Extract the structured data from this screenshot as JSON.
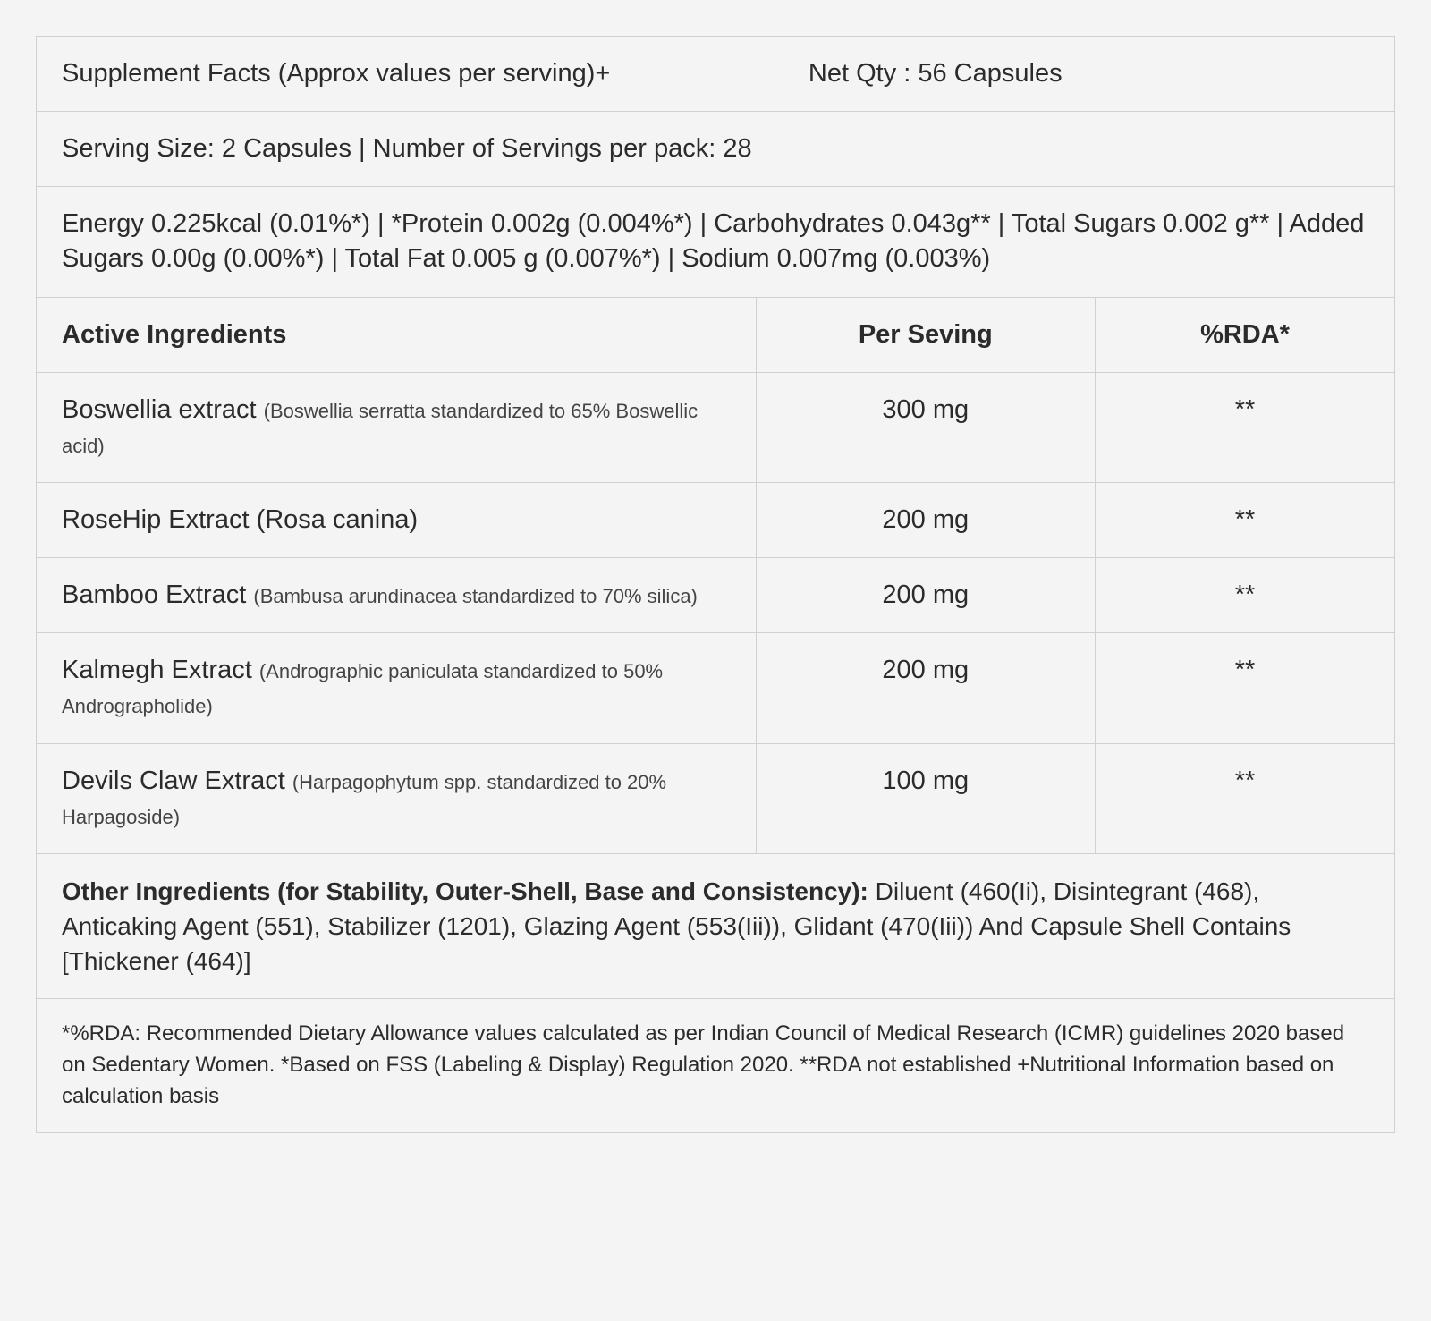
{
  "colors": {
    "background": "#f4f4f4",
    "border": "#d0d0d0",
    "text": "#2b2b2b",
    "text_muted": "#444444"
  },
  "typography": {
    "base_fontsize": 29,
    "detail_fontsize": 22,
    "footnote_fontsize": 24,
    "bold_weight": 700
  },
  "header": {
    "title": "Supplement Facts (Approx values per serving)+",
    "net_qty": "Net Qty : 56 Capsules"
  },
  "serving_info": "Serving Size: 2 Capsules  |  Number of Servings per pack: 28",
  "nutrition": "Energy 0.225kcal (0.01%*) | *Protein 0.002g (0.004%*) | Carbohydrates 0.043g** | Total Sugars 0.002 g** | Added Sugars 0.00g (0.00%*) | Total Fat 0.005 g (0.007%*) | Sodium 0.007mg (0.003%)",
  "columns": {
    "ingredients": "Active Ingredients",
    "per_serving": "Per Seving",
    "rda": "%RDA*"
  },
  "ingredients": [
    {
      "name": "Boswellia extract ",
      "detail": "(Boswellia serratta standardized to 65% Boswellic acid)",
      "per_serving": "300 mg",
      "rda": "**"
    },
    {
      "name": "RoseHip Extract (Rosa canina)",
      "detail": "",
      "per_serving": "200 mg",
      "rda": "**"
    },
    {
      "name": "Bamboo Extract ",
      "detail": "(Bambusa arundinacea standardized to 70% silica)",
      "per_serving": "200 mg",
      "rda": "**"
    },
    {
      "name": "Kalmegh Extract ",
      "detail": "(Andrographic paniculata standardized to 50% Andrographolide)",
      "per_serving": "200 mg",
      "rda": "**"
    },
    {
      "name": "Devils Claw Extract ",
      "detail": "(Harpagophytum spp. standardized to 20% Harpagoside)",
      "per_serving": "100 mg",
      "rda": "**"
    }
  ],
  "other_ingredients": {
    "label": "Other Ingredients (for Stability, Outer-Shell, Base and Consistency): ",
    "text": "Diluent (460(Ii), Disintegrant (468), Anticaking Agent (551), Stabilizer (1201), Glazing Agent (553(Iii)), Glidant (470(Iii)) And Capsule Shell Contains [Thickener  (464)]"
  },
  "footnote": "*%RDA: Recommended Dietary Allowance values calculated as per Indian Council of Medical Research (ICMR) guidelines 2020 based on Sedentary Women. *Based on FSS (Labeling & Display) Regulation 2020. **RDA not established +Nutritional Information based on calculation basis"
}
